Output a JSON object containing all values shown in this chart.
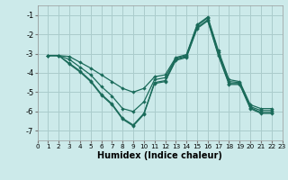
{
  "xlabel": "Humidex (Indice chaleur)",
  "xlim": [
    0,
    23
  ],
  "ylim": [
    -7.5,
    -0.5
  ],
  "yticks": [
    -7,
    -6,
    -5,
    -4,
    -3,
    -2,
    -1
  ],
  "xticks": [
    0,
    1,
    2,
    3,
    4,
    5,
    6,
    7,
    8,
    9,
    10,
    11,
    12,
    13,
    14,
    15,
    16,
    17,
    18,
    19,
    20,
    21,
    22,
    23
  ],
  "background_color": "#cceaea",
  "grid_color": "#aacccc",
  "line_color": "#1a6b5a",
  "series": [
    [
      1,
      [
        -3.1,
        -3.1,
        -3.5,
        -3.9,
        -4.4,
        -5.1,
        -5.6,
        -6.35,
        -6.7,
        -6.1,
        -4.5,
        -4.4,
        -3.3,
        -3.15,
        -1.65,
        -1.25,
        -3.05,
        -4.55,
        -4.55,
        -5.8,
        -6.05,
        -6.05
      ]
    ],
    [
      1,
      [
        -3.1,
        -3.1,
        -3.55,
        -3.95,
        -4.45,
        -5.15,
        -5.65,
        -6.4,
        -6.75,
        -6.15,
        -4.55,
        -4.45,
        -3.35,
        -3.2,
        -1.7,
        -1.3,
        -3.1,
        -4.6,
        -4.6,
        -5.85,
        -6.1,
        -6.1
      ]
    ],
    [
      1,
      [
        -3.1,
        -3.1,
        -3.3,
        -3.7,
        -4.1,
        -4.7,
        -5.2,
        -5.85,
        -6.0,
        -5.5,
        -4.35,
        -4.25,
        -3.25,
        -3.1,
        -1.55,
        -1.15,
        -2.95,
        -4.45,
        -4.5,
        -5.75,
        -5.95,
        -5.95
      ]
    ],
    [
      1,
      [
        -3.1,
        -3.1,
        -3.15,
        -3.45,
        -3.75,
        -4.1,
        -4.45,
        -4.8,
        -5.0,
        -4.8,
        -4.2,
        -4.1,
        -3.2,
        -3.05,
        -1.5,
        -1.1,
        -2.85,
        -4.35,
        -4.45,
        -5.65,
        -5.85,
        -5.85
      ]
    ]
  ]
}
